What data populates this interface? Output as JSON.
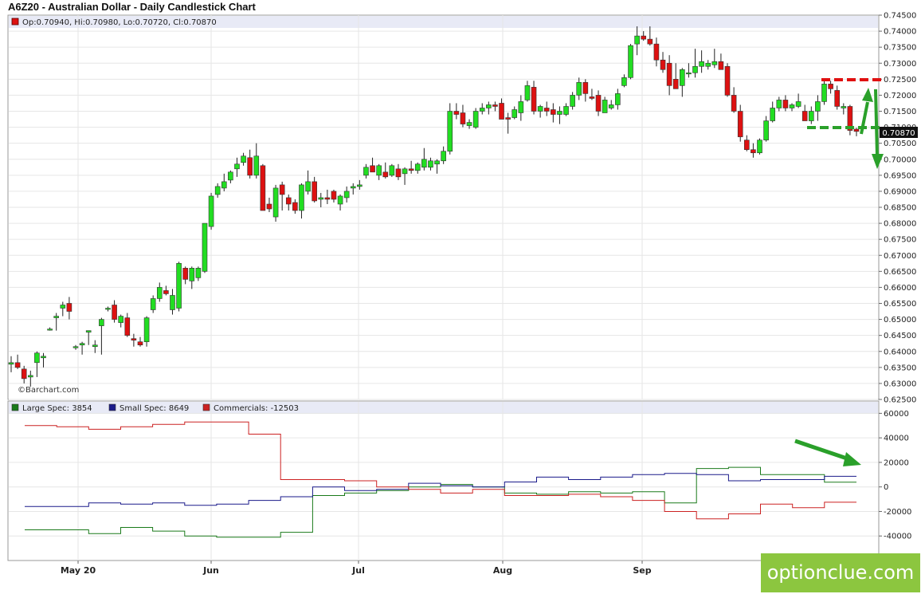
{
  "title": "A6Z20 - Australian Dollar - Daily Candlestick Chart",
  "ohlc_text": "Op:0.70940, Hi:0.70980, Lo:0.70720, Cl:0.70870",
  "last_price_label": "0.70870",
  "credit": "©Barchart.com",
  "watermark": "optionclue.com",
  "x_axis_labels": [
    "May 20",
    "Jun",
    "Jul",
    "Aug",
    "Sep"
  ],
  "colors": {
    "up": "#22dd22",
    "down": "#dd1111",
    "large_spec": "#1a7a1a",
    "small_spec": "#1a1a8a",
    "commercials": "#cc2222",
    "annotation": "#2aa02a",
    "annotation_red": "#e01010"
  },
  "chart_data": [
    {
      "type": "candlestick",
      "title": "A6Z20 - Australian Dollar - Daily Candlestick Chart",
      "ylim": [
        0.625,
        0.745
      ],
      "yticks": [
        "0.74500",
        "0.74000",
        "0.73500",
        "0.73000",
        "0.72500",
        "0.72000",
        "0.71500",
        "0.71000",
        "0.70500",
        "0.70000",
        "0.69500",
        "0.69000",
        "0.68500",
        "0.68000",
        "0.67500",
        "0.67000",
        "0.66500",
        "0.66000",
        "0.65500",
        "0.65000",
        "0.64500",
        "0.64000",
        "0.63500",
        "0.63000",
        "0.62500"
      ],
      "x_axis_labels": [
        "May 20",
        "Jun",
        "Jul",
        "Aug",
        "Sep"
      ],
      "candles": [
        [
          0.636,
          0.6385,
          0.6335,
          0.6365
        ],
        [
          0.6365,
          0.639,
          0.6345,
          0.635
        ],
        [
          0.6345,
          0.6355,
          0.63,
          0.6315
        ],
        [
          0.632,
          0.634,
          0.629,
          0.6325
        ],
        [
          0.6365,
          0.64,
          0.632,
          0.6395
        ],
        [
          0.638,
          0.6395,
          0.635,
          0.6385
        ],
        [
          0.647,
          0.6475,
          0.6465,
          0.647
        ],
        [
          0.6505,
          0.652,
          0.6465,
          0.651
        ],
        [
          0.6535,
          0.6555,
          0.651,
          0.6545
        ],
        [
          0.655,
          0.657,
          0.65,
          0.6525
        ],
        [
          0.6415,
          0.642,
          0.6405,
          0.6415
        ],
        [
          0.642,
          0.643,
          0.639,
          0.6425
        ],
        [
          0.646,
          0.6465,
          0.642,
          0.6465
        ],
        [
          0.6415,
          0.6435,
          0.6395,
          0.642
        ],
        [
          0.648,
          0.6505,
          0.639,
          0.65
        ],
        [
          0.6535,
          0.654,
          0.6525,
          0.6535
        ],
        [
          0.6545,
          0.656,
          0.649,
          0.65
        ],
        [
          0.649,
          0.6515,
          0.6475,
          0.651
        ],
        [
          0.6505,
          0.652,
          0.6445,
          0.645
        ],
        [
          0.644,
          0.6455,
          0.6415,
          0.6435
        ],
        [
          0.643,
          0.6445,
          0.6415,
          0.642
        ],
        [
          0.643,
          0.651,
          0.6415,
          0.6505
        ],
        [
          0.653,
          0.6575,
          0.652,
          0.6565
        ],
        [
          0.6565,
          0.6615,
          0.6555,
          0.66
        ],
        [
          0.659,
          0.6605,
          0.6575,
          0.658
        ],
        [
          0.653,
          0.6595,
          0.6515,
          0.6575
        ],
        [
          0.6535,
          0.668,
          0.6525,
          0.6675
        ],
        [
          0.666,
          0.6665,
          0.661,
          0.6625
        ],
        [
          0.662,
          0.6665,
          0.6595,
          0.666
        ],
        [
          0.663,
          0.6665,
          0.662,
          0.666
        ],
        [
          0.665,
          0.68,
          0.6645,
          0.68
        ],
        [
          0.679,
          0.6895,
          0.678,
          0.6885
        ],
        [
          0.689,
          0.6925,
          0.688,
          0.6915
        ],
        [
          0.691,
          0.6955,
          0.69,
          0.693
        ],
        [
          0.6935,
          0.6965,
          0.6925,
          0.696
        ],
        [
          0.697,
          0.7005,
          0.6945,
          0.6985
        ],
        [
          0.699,
          0.702,
          0.698,
          0.701
        ],
        [
          0.7005,
          0.703,
          0.694,
          0.695
        ],
        [
          0.695,
          0.705,
          0.694,
          0.701
        ],
        [
          0.698,
          0.6985,
          0.6845,
          0.684
        ],
        [
          0.686,
          0.688,
          0.6835,
          0.6845
        ],
        [
          0.682,
          0.692,
          0.6805,
          0.691
        ],
        [
          0.692,
          0.693,
          0.684,
          0.689
        ],
        [
          0.688,
          0.689,
          0.684,
          0.686
        ],
        [
          0.6865,
          0.6875,
          0.683,
          0.684
        ],
        [
          0.684,
          0.6925,
          0.6815,
          0.692
        ],
        [
          0.69,
          0.6965,
          0.689,
          0.693
        ],
        [
          0.693,
          0.6945,
          0.6865,
          0.687
        ],
        [
          0.6875,
          0.6895,
          0.685,
          0.688
        ],
        [
          0.688,
          0.6905,
          0.686,
          0.6875
        ],
        [
          0.69,
          0.6905,
          0.6865,
          0.6875
        ],
        [
          0.686,
          0.689,
          0.684,
          0.6885
        ],
        [
          0.688,
          0.6915,
          0.6865,
          0.69
        ],
        [
          0.691,
          0.6925,
          0.689,
          0.6915
        ],
        [
          0.6915,
          0.6935,
          0.6905,
          0.692
        ],
        [
          0.695,
          0.6985,
          0.694,
          0.6975
        ],
        [
          0.698,
          0.7005,
          0.6965,
          0.696
        ],
        [
          0.695,
          0.6985,
          0.6935,
          0.698
        ],
        [
          0.696,
          0.699,
          0.694,
          0.6945
        ],
        [
          0.695,
          0.6985,
          0.6945,
          0.698
        ],
        [
          0.697,
          0.6985,
          0.6935,
          0.6945
        ],
        [
          0.6955,
          0.6975,
          0.692,
          0.697
        ],
        [
          0.697,
          0.6995,
          0.6955,
          0.6965
        ],
        [
          0.6965,
          0.699,
          0.6955,
          0.6985
        ],
        [
          0.6975,
          0.7035,
          0.6965,
          0.7
        ],
        [
          0.6975,
          0.7005,
          0.6965,
          0.6995
        ],
        [
          0.6985,
          0.7,
          0.6955,
          0.6995
        ],
        [
          0.6995,
          0.704,
          0.6985,
          0.7025
        ],
        [
          0.7025,
          0.7175,
          0.7015,
          0.715
        ],
        [
          0.715,
          0.7175,
          0.7125,
          0.714
        ],
        [
          0.7145,
          0.717,
          0.71,
          0.711
        ],
        [
          0.7105,
          0.7125,
          0.7095,
          0.7115
        ],
        [
          0.71,
          0.716,
          0.7095,
          0.715
        ],
        [
          0.715,
          0.7175,
          0.714,
          0.716
        ],
        [
          0.716,
          0.718,
          0.714,
          0.717
        ],
        [
          0.717,
          0.718,
          0.715,
          0.7165
        ],
        [
          0.7175,
          0.719,
          0.713,
          0.7125
        ],
        [
          0.713,
          0.7145,
          0.708,
          0.7125
        ],
        [
          0.713,
          0.7165,
          0.7125,
          0.7155
        ],
        [
          0.7145,
          0.72,
          0.712,
          0.718
        ],
        [
          0.7185,
          0.7245,
          0.718,
          0.723
        ],
        [
          0.7225,
          0.7245,
          0.714,
          0.715
        ],
        [
          0.715,
          0.717,
          0.713,
          0.7165
        ],
        [
          0.716,
          0.718,
          0.7135,
          0.715
        ],
        [
          0.7155,
          0.7175,
          0.7115,
          0.714
        ],
        [
          0.714,
          0.7165,
          0.711,
          0.715
        ],
        [
          0.714,
          0.7175,
          0.7135,
          0.7165
        ],
        [
          0.7165,
          0.721,
          0.7155,
          0.72
        ],
        [
          0.72,
          0.7255,
          0.7185,
          0.724
        ],
        [
          0.724,
          0.725,
          0.718,
          0.7205
        ],
        [
          0.7195,
          0.722,
          0.7185,
          0.719
        ],
        [
          0.72,
          0.7215,
          0.7135,
          0.715
        ],
        [
          0.7145,
          0.7195,
          0.7145,
          0.7185
        ],
        [
          0.716,
          0.7185,
          0.7155,
          0.717
        ],
        [
          0.717,
          0.722,
          0.7155,
          0.7205
        ],
        [
          0.723,
          0.7265,
          0.7225,
          0.7255
        ],
        [
          0.7255,
          0.736,
          0.725,
          0.7355
        ],
        [
          0.736,
          0.7415,
          0.7325,
          0.7385
        ],
        [
          0.7385,
          0.74,
          0.737,
          0.7375
        ],
        [
          0.7375,
          0.7415,
          0.7355,
          0.736
        ],
        [
          0.736,
          0.738,
          0.729,
          0.731
        ],
        [
          0.731,
          0.7335,
          0.727,
          0.728
        ],
        [
          0.73,
          0.7325,
          0.72,
          0.723
        ],
        [
          0.725,
          0.73,
          0.722,
          0.722
        ],
        [
          0.723,
          0.7285,
          0.7195,
          0.728
        ],
        [
          0.727,
          0.73,
          0.7255,
          0.727
        ],
        [
          0.727,
          0.7345,
          0.7255,
          0.729
        ],
        [
          0.729,
          0.734,
          0.727,
          0.7305
        ],
        [
          0.729,
          0.731,
          0.728,
          0.73
        ],
        [
          0.7295,
          0.7345,
          0.7285,
          0.7305
        ],
        [
          0.7305,
          0.733,
          0.728,
          0.728
        ],
        [
          0.729,
          0.73,
          0.7195,
          0.72
        ],
        [
          0.72,
          0.7225,
          0.7145,
          0.715
        ],
        [
          0.715,
          0.717,
          0.7055,
          0.707
        ],
        [
          0.706,
          0.7075,
          0.7025,
          0.703
        ],
        [
          0.703,
          0.705,
          0.7005,
          0.702
        ],
        [
          0.702,
          0.7065,
          0.7015,
          0.706
        ],
        [
          0.706,
          0.7135,
          0.7055,
          0.712
        ],
        [
          0.712,
          0.718,
          0.7115,
          0.716
        ],
        [
          0.716,
          0.7195,
          0.715,
          0.7185
        ],
        [
          0.7185,
          0.72,
          0.715,
          0.716
        ],
        [
          0.716,
          0.7175,
          0.715,
          0.717
        ],
        [
          0.7165,
          0.7205,
          0.716,
          0.718
        ],
        [
          0.715,
          0.717,
          0.712,
          0.712
        ],
        [
          0.712,
          0.7165,
          0.711,
          0.715
        ],
        [
          0.715,
          0.72,
          0.712,
          0.718
        ],
        [
          0.718,
          0.7245,
          0.717,
          0.7235
        ],
        [
          0.7235,
          0.7245,
          0.7205,
          0.722
        ],
        [
          0.7215,
          0.723,
          0.7155,
          0.7165
        ],
        [
          0.716,
          0.7175,
          0.714,
          0.7165
        ],
        [
          0.7165,
          0.717,
          0.7075,
          0.709
        ],
        [
          0.7094,
          0.7098,
          0.7072,
          0.7087
        ]
      ]
    },
    {
      "type": "line",
      "yticks": [
        "60000",
        "40000",
        "20000",
        "0",
        "-20000",
        "-40000"
      ],
      "ylim": [
        -60000,
        70000
      ],
      "series": [
        {
          "name": "Large Spec: 3854",
          "color": "#1a7a1a",
          "values": [
            -35000,
            -35000,
            -38000,
            -33000,
            -36000,
            -40000,
            -41000,
            -41000,
            -37000,
            -7000,
            -5000,
            -3000,
            0,
            2000,
            0,
            -5000,
            -6000,
            -4000,
            -5000,
            -4000,
            -13000,
            15000,
            16000,
            10000,
            10000,
            3854
          ]
        },
        {
          "name": "Small Spec: 8649",
          "color": "#1a1a8a",
          "values": [
            -16000,
            -16000,
            -13000,
            -14000,
            -13000,
            -15000,
            -14000,
            -11000,
            -8000,
            0,
            -3000,
            -2000,
            3000,
            1000,
            0,
            4000,
            8000,
            6000,
            8000,
            10000,
            11000,
            10000,
            5000,
            6000,
            6000,
            8649
          ]
        },
        {
          "name": "Commercials: -12503",
          "color": "#cc2222",
          "values": [
            50000,
            49000,
            47000,
            49000,
            51000,
            53000,
            53000,
            43000,
            6000,
            6000,
            5000,
            0,
            -2000,
            -5000,
            -2000,
            -7000,
            -7000,
            -6000,
            -8000,
            -11000,
            -20000,
            -26000,
            -22000,
            -14000,
            -17000,
            -12503
          ]
        }
      ]
    }
  ]
}
